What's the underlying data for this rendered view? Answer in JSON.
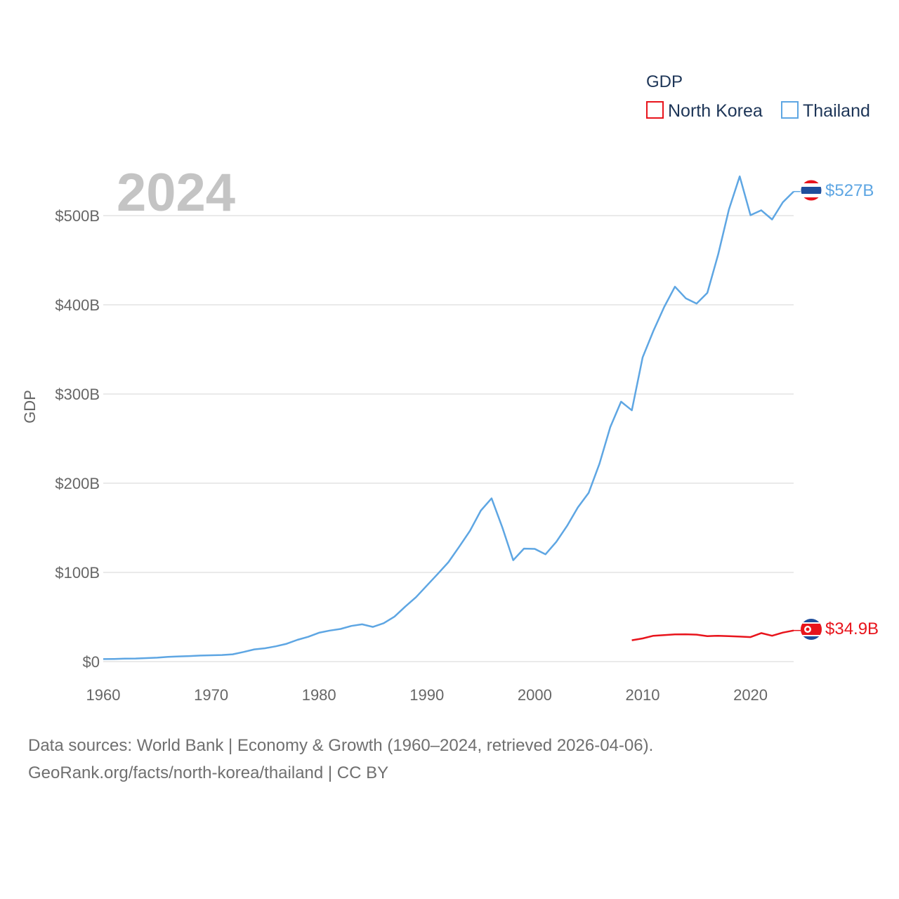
{
  "chart_data": {
    "type": "line",
    "title": "GDP",
    "year_label": "2024",
    "ylabel": "GDP",
    "xlabel": "",
    "xlim": [
      1960,
      2024
    ],
    "ylim": [
      0,
      500
    ],
    "y_unit": "billion USD",
    "x_ticks": [
      "1960",
      "1970",
      "1980",
      "1990",
      "2000",
      "2010",
      "2020"
    ],
    "y_ticks": [
      {
        "value": 0,
        "label": "$0"
      },
      {
        "value": 100,
        "label": "$100B"
      },
      {
        "value": 200,
        "label": "$200B"
      },
      {
        "value": 300,
        "label": "$300B"
      },
      {
        "value": 400,
        "label": "$400B"
      },
      {
        "value": 500,
        "label": "$500B"
      }
    ],
    "legend": {
      "title": "GDP",
      "placement": "top-right"
    },
    "series": [
      {
        "name": "North Korea",
        "color": "#e8141c",
        "end_label": "$34.9B",
        "x": [
          2009,
          2010,
          2011,
          2012,
          2013,
          2014,
          2015,
          2016,
          2017,
          2018,
          2019,
          2020,
          2021,
          2022,
          2023,
          2024
        ],
        "values": [
          23.9,
          26.0,
          29.0,
          29.8,
          30.5,
          30.6,
          30.2,
          28.6,
          29.0,
          28.5,
          28.0,
          27.5,
          32.0,
          29.0,
          32.5,
          34.9
        ]
      },
      {
        "name": "Thailand",
        "color": "#5ea6e3",
        "end_label": "$527B",
        "x": [
          1960,
          1961,
          1962,
          1963,
          1964,
          1965,
          1966,
          1967,
          1968,
          1969,
          1970,
          1971,
          1972,
          1973,
          1974,
          1975,
          1976,
          1977,
          1978,
          1979,
          1980,
          1981,
          1982,
          1983,
          1984,
          1985,
          1986,
          1987,
          1988,
          1989,
          1990,
          1991,
          1992,
          1993,
          1994,
          1995,
          1996,
          1997,
          1998,
          1999,
          2000,
          2001,
          2002,
          2003,
          2004,
          2005,
          2006,
          2007,
          2008,
          2009,
          2010,
          2011,
          2012,
          2013,
          2014,
          2015,
          2016,
          2017,
          2018,
          2019,
          2020,
          2021,
          2022,
          2023,
          2024
        ],
        "values": [
          2.8,
          3.0,
          3.3,
          3.5,
          3.9,
          4.4,
          5.3,
          5.8,
          6.2,
          6.8,
          7.1,
          7.4,
          8.2,
          10.8,
          13.7,
          15.0,
          17.2,
          20.0,
          24.4,
          27.8,
          32.4,
          34.8,
          36.6,
          40.0,
          41.8,
          38.9,
          43.1,
          50.5,
          61.7,
          72.3,
          85.3,
          98.2,
          111.5,
          128.9,
          146.7,
          169.3,
          183.0,
          150.2,
          113.7,
          126.7,
          126.4,
          120.3,
          134.3,
          152.3,
          172.9,
          189.3,
          221.8,
          262.9,
          291.4,
          281.7,
          341.1,
          370.8,
          397.6,
          420.3,
          407.3,
          401.3,
          413.4,
          456.4,
          506.8,
          544.0,
          500.5,
          506.0,
          495.7,
          515.0,
          527.0
        ]
      }
    ]
  },
  "source": {
    "line1": "Data sources: World Bank | Economy & Growth (1960–2024, retrieved 2026-04-06).",
    "line2": "GeoRank.org/facts/north-korea/thailand | CC BY"
  }
}
